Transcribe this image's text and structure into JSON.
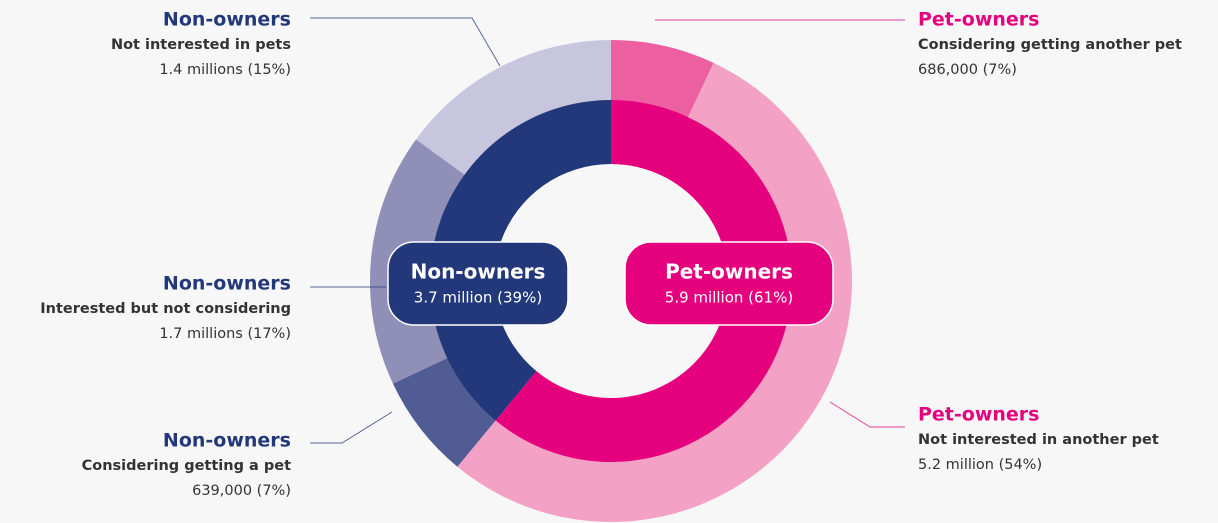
{
  "chart_data": {
    "type": "nested-donut",
    "inner": {
      "categories": [
        "Pet-owners",
        "Non-owners"
      ],
      "values": [
        61,
        39
      ],
      "value_labels": [
        "5.9 million (61%)",
        "3.7 million (39%)"
      ],
      "colors": [
        "#e5007e",
        "#22387a"
      ]
    },
    "outer": {
      "categories": [
        "Pet-owners",
        "Pet-owners",
        "Non-owners",
        "Non-owners",
        "Non-owners"
      ],
      "descriptions": [
        "Considering getting another pet",
        "Not interested in another pet",
        "Considering getting a pet",
        "Interested but not considering",
        "Not interested in pets"
      ],
      "values": [
        7,
        54,
        7,
        17,
        15
      ],
      "value_labels": [
        "686,000 (7%)",
        "5.2 million (54%)",
        "639,000 (7%)",
        "1.7 millions (17%)",
        "1.4 millions (15%)"
      ],
      "colors": [
        "#ec5fa0",
        "#f4a1c6",
        "#525c94",
        "#8f8fb8",
        "#c8c6df"
      ]
    }
  }
}
